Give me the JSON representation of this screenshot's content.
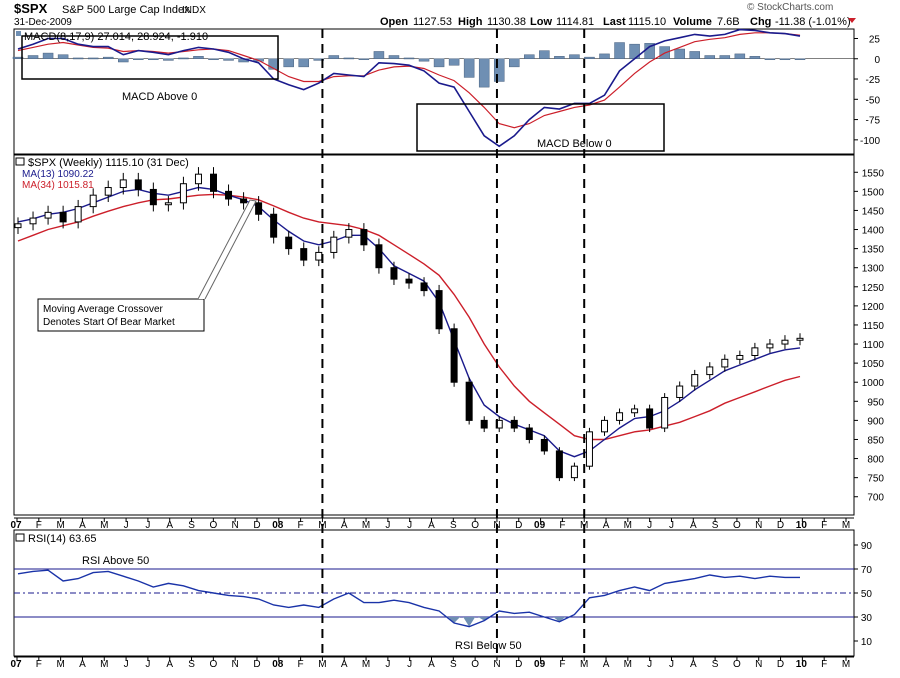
{
  "header": {
    "symbol": "$SPX",
    "name": "S&P 500 Large Cap Index",
    "exchange": "INDX",
    "date": "31-Dec-2009",
    "open_label": "Open",
    "open": "1127.53",
    "high_label": "High",
    "high": "1130.38",
    "low_label": "Low",
    "low": "1114.81",
    "last_label": "Last",
    "last": "1115.10",
    "volume_label": "Volume",
    "volume": "7.6B",
    "chg_label": "Chg",
    "chg": "-11.38 (-1.01%)",
    "watermark": "© StockCharts.com"
  },
  "colors": {
    "price_up": "#000000",
    "ma13": "#1a1a8c",
    "ma34": "#cc1f2a",
    "histogram": "#6f8fb3",
    "rsi_line": "#1a33a8",
    "rsi_fill": "#6f8fb3",
    "axis": "#000000"
  },
  "chart_data": [
    {
      "type": "bar",
      "panel": "MACD",
      "legend": "MACD(8,17,9) 27.014, 28.924, -1.910",
      "yticks": [
        25,
        0,
        -25,
        -50,
        -75,
        -100
      ],
      "ylim": [
        -115,
        33
      ],
      "annotations": [
        "MACD Above 0",
        "MACD Below 0"
      ],
      "x": [
        0,
        3,
        6,
        9,
        12,
        15,
        18,
        21,
        24,
        27,
        30,
        33,
        36,
        39,
        42,
        45,
        48,
        51,
        54,
        57,
        60,
        63,
        66,
        69,
        72,
        75,
        78,
        81,
        84,
        87,
        90,
        93,
        96,
        99,
        102,
        105,
        108,
        111,
        114,
        117,
        120,
        123,
        126,
        129,
        132,
        135,
        138,
        141,
        144,
        147,
        150,
        153,
        156
      ],
      "series": [
        {
          "name": "MACD",
          "values": [
            12,
            18,
            25,
            25,
            18,
            15,
            15,
            5,
            10,
            8,
            5,
            10,
            14,
            12,
            8,
            0,
            -5,
            -25,
            -32,
            -38,
            -30,
            -18,
            -20,
            -22,
            -5,
            -6,
            -8,
            -15,
            -30,
            -35,
            -65,
            -95,
            -108,
            -95,
            -75,
            -60,
            -62,
            -55,
            -55,
            -45,
            -15,
            0,
            15,
            22,
            26,
            30,
            28,
            30,
            36,
            35,
            32,
            31,
            28
          ]
        },
        {
          "name": "Signal",
          "values": [
            10,
            14,
            18,
            20,
            17,
            14,
            13,
            9,
            10,
            9,
            7,
            9,
            11,
            12,
            10,
            4,
            -2,
            -12,
            -22,
            -28,
            -28,
            -22,
            -21,
            -21,
            -14,
            -10,
            -9,
            -12,
            -20,
            -27,
            -42,
            -60,
            -80,
            -85,
            -80,
            -70,
            -65,
            -60,
            -57,
            -51,
            -35,
            -18,
            -4,
            7,
            14,
            21,
            24,
            26,
            30,
            32,
            32,
            31,
            29
          ]
        },
        {
          "name": "Histogram",
          "values": [
            2,
            4,
            7,
            5,
            1,
            1,
            2,
            -4,
            0,
            -1,
            -2,
            1,
            3,
            0,
            -2,
            -4,
            -3,
            -13,
            -10,
            -10,
            -2,
            4,
            1,
            -1,
            9,
            4,
            1,
            -3,
            -10,
            -8,
            -23,
            -35,
            -28,
            -10,
            5,
            10,
            3,
            5,
            2,
            6,
            20,
            18,
            19,
            15,
            12,
            9,
            4,
            4,
            6,
            3,
            0,
            0,
            -1
          ]
        }
      ]
    },
    {
      "type": "candlestick",
      "panel": "Price",
      "title": "$SPX (Weekly) 1115.10 (31 Dec)",
      "legend": [
        "MA(13) 1090.22",
        "MA(34) 1015.81"
      ],
      "yticks": [
        1550,
        1500,
        1450,
        1400,
        1350,
        1300,
        1250,
        1200,
        1150,
        1100,
        1050,
        1000,
        950,
        900,
        850,
        800,
        750,
        700
      ],
      "ylim": [
        660,
        1590
      ],
      "annotation": "Moving Average Crossover Denotes Start Of Bear Market",
      "x": [
        0,
        3,
        6,
        9,
        12,
        15,
        18,
        21,
        24,
        27,
        30,
        33,
        36,
        39,
        42,
        45,
        48,
        51,
        54,
        57,
        60,
        63,
        66,
        69,
        72,
        75,
        78,
        81,
        84,
        87,
        90,
        93,
        96,
        99,
        102,
        105,
        108,
        111,
        114,
        117,
        120,
        123,
        126,
        129,
        132,
        135,
        138,
        141,
        144,
        147,
        150,
        153,
        156
      ],
      "series": [
        {
          "name": "Close",
          "values": [
            1415,
            1430,
            1445,
            1420,
            1460,
            1490,
            1510,
            1530,
            1505,
            1465,
            1470,
            1520,
            1545,
            1500,
            1480,
            1470,
            1440,
            1380,
            1350,
            1320,
            1340,
            1380,
            1400,
            1360,
            1300,
            1270,
            1260,
            1240,
            1140,
            1000,
            900,
            880,
            900,
            880,
            850,
            820,
            750,
            780,
            870,
            900,
            920,
            930,
            880,
            960,
            990,
            1020,
            1040,
            1060,
            1070,
            1090,
            1100,
            1110,
            1115
          ]
        },
        {
          "name": "MA(13)",
          "values": [
            1420,
            1428,
            1440,
            1445,
            1455,
            1470,
            1485,
            1500,
            1505,
            1495,
            1490,
            1500,
            1510,
            1505,
            1490,
            1478,
            1460,
            1425,
            1395,
            1370,
            1360,
            1370,
            1385,
            1385,
            1350,
            1305,
            1285,
            1265,
            1210,
            1110,
            1010,
            940,
            910,
            890,
            875,
            860,
            820,
            805,
            820,
            850,
            880,
            905,
            910,
            925,
            950,
            980,
            1005,
            1030,
            1045,
            1060,
            1075,
            1085,
            1090
          ]
        },
        {
          "name": "MA(34)",
          "values": [
            1370,
            1385,
            1400,
            1410,
            1420,
            1435,
            1448,
            1460,
            1470,
            1478,
            1480,
            1485,
            1490,
            1492,
            1490,
            1485,
            1478,
            1462,
            1445,
            1430,
            1420,
            1415,
            1410,
            1400,
            1385,
            1360,
            1335,
            1310,
            1280,
            1230,
            1170,
            1100,
            1040,
            990,
            950,
            920,
            890,
            860,
            850,
            850,
            860,
            870,
            875,
            885,
            895,
            910,
            925,
            945,
            960,
            975,
            990,
            1005,
            1015
          ]
        }
      ]
    },
    {
      "type": "line",
      "panel": "RSI",
      "legend": "RSI(14) 63.65",
      "yticks": [
        90,
        70,
        50,
        30,
        10
      ],
      "ylim": [
        0,
        100
      ],
      "reference_lines": [
        70,
        50,
        30
      ],
      "annotations": [
        "RSI Above 50",
        "RSI Below 50"
      ],
      "x": [
        0,
        3,
        6,
        9,
        12,
        15,
        18,
        21,
        24,
        27,
        30,
        33,
        36,
        39,
        42,
        45,
        48,
        51,
        54,
        57,
        60,
        63,
        66,
        69,
        72,
        75,
        78,
        81,
        84,
        87,
        90,
        93,
        96,
        99,
        102,
        105,
        108,
        111,
        114,
        117,
        120,
        123,
        126,
        129,
        132,
        135,
        138,
        141,
        144,
        147,
        150,
        153,
        156
      ],
      "series": [
        {
          "name": "RSI",
          "values": [
            66,
            68,
            69,
            60,
            62,
            67,
            68,
            64,
            60,
            55,
            58,
            56,
            52,
            50,
            48,
            47,
            45,
            40,
            38,
            40,
            38,
            45,
            50,
            42,
            42,
            44,
            42,
            38,
            35,
            25,
            22,
            27,
            35,
            33,
            34,
            30,
            26,
            32,
            46,
            48,
            52,
            55,
            52,
            58,
            60,
            62,
            65,
            63,
            64,
            62,
            64,
            63,
            63
          ]
        }
      ]
    },
    {
      "type": "axis",
      "panel": "time",
      "tick_labels": [
        "07",
        "F",
        "M",
        "A",
        "M",
        "J",
        "J",
        "A",
        "S",
        "O",
        "N",
        "D",
        "08",
        "F",
        "M",
        "A",
        "M",
        "J",
        "J",
        "A",
        "S",
        "O",
        "N",
        "D",
        "09",
        "F",
        "M",
        "A",
        "M",
        "J",
        "J",
        "A",
        "S",
        "O",
        "N",
        "D",
        "10",
        "F",
        "M"
      ],
      "vertical_markers": [
        {
          "label": "Mar 08",
          "month_index": 14
        },
        {
          "label": "Nov 08",
          "month_index": 22
        },
        {
          "label": "Mar 09",
          "month_index": 26
        }
      ]
    }
  ]
}
